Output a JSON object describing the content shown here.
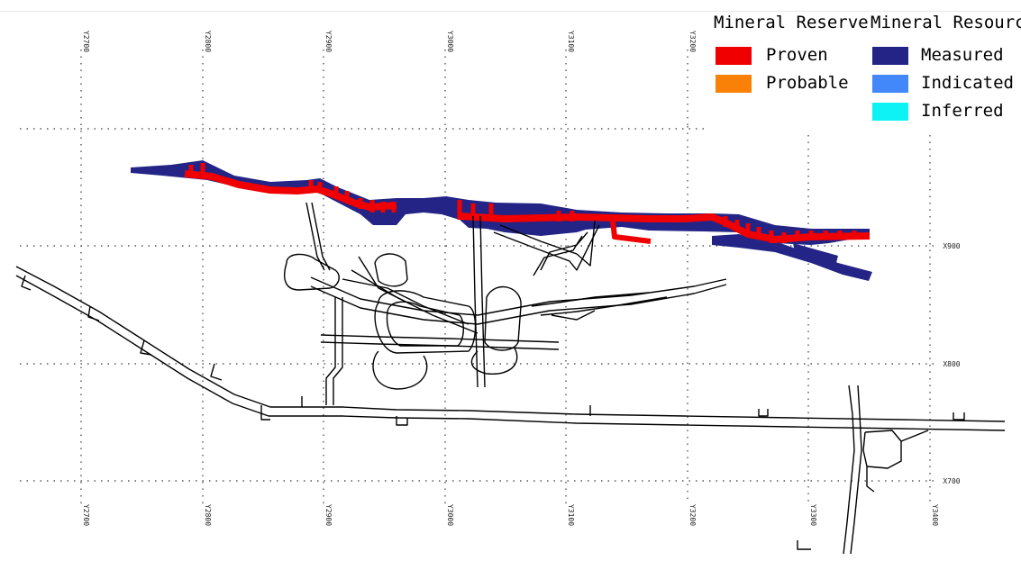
{
  "legend": {
    "reserve": {
      "title": "Mineral Reserve",
      "items": [
        {
          "label": "Proven",
          "color": "#f00000"
        },
        {
          "label": "Probable",
          "color": "#f98108"
        }
      ]
    },
    "resource": {
      "title": "Mineral Resource",
      "items": [
        {
          "label": "Measured",
          "color": "#232486"
        },
        {
          "label": "Indicated",
          "color": "#4288fa"
        },
        {
          "label": "Inferred",
          "color": "#0ff2f5"
        }
      ]
    }
  },
  "grid": {
    "top_labels": [
      "Y2700",
      "Y2800",
      "Y2900",
      "Y3000",
      "Y3100",
      "Y3200"
    ],
    "bottom_labels": [
      "Y2700",
      "Y2800",
      "Y2900",
      "Y3000",
      "Y3100",
      "Y3200",
      "Y3300",
      "Y3400"
    ],
    "right_labels": [
      "X900",
      "X800",
      "X700"
    ]
  },
  "colors": {
    "proven": "#f00000",
    "measured": "#232486",
    "workings": "#000000",
    "grid": "#555555"
  }
}
